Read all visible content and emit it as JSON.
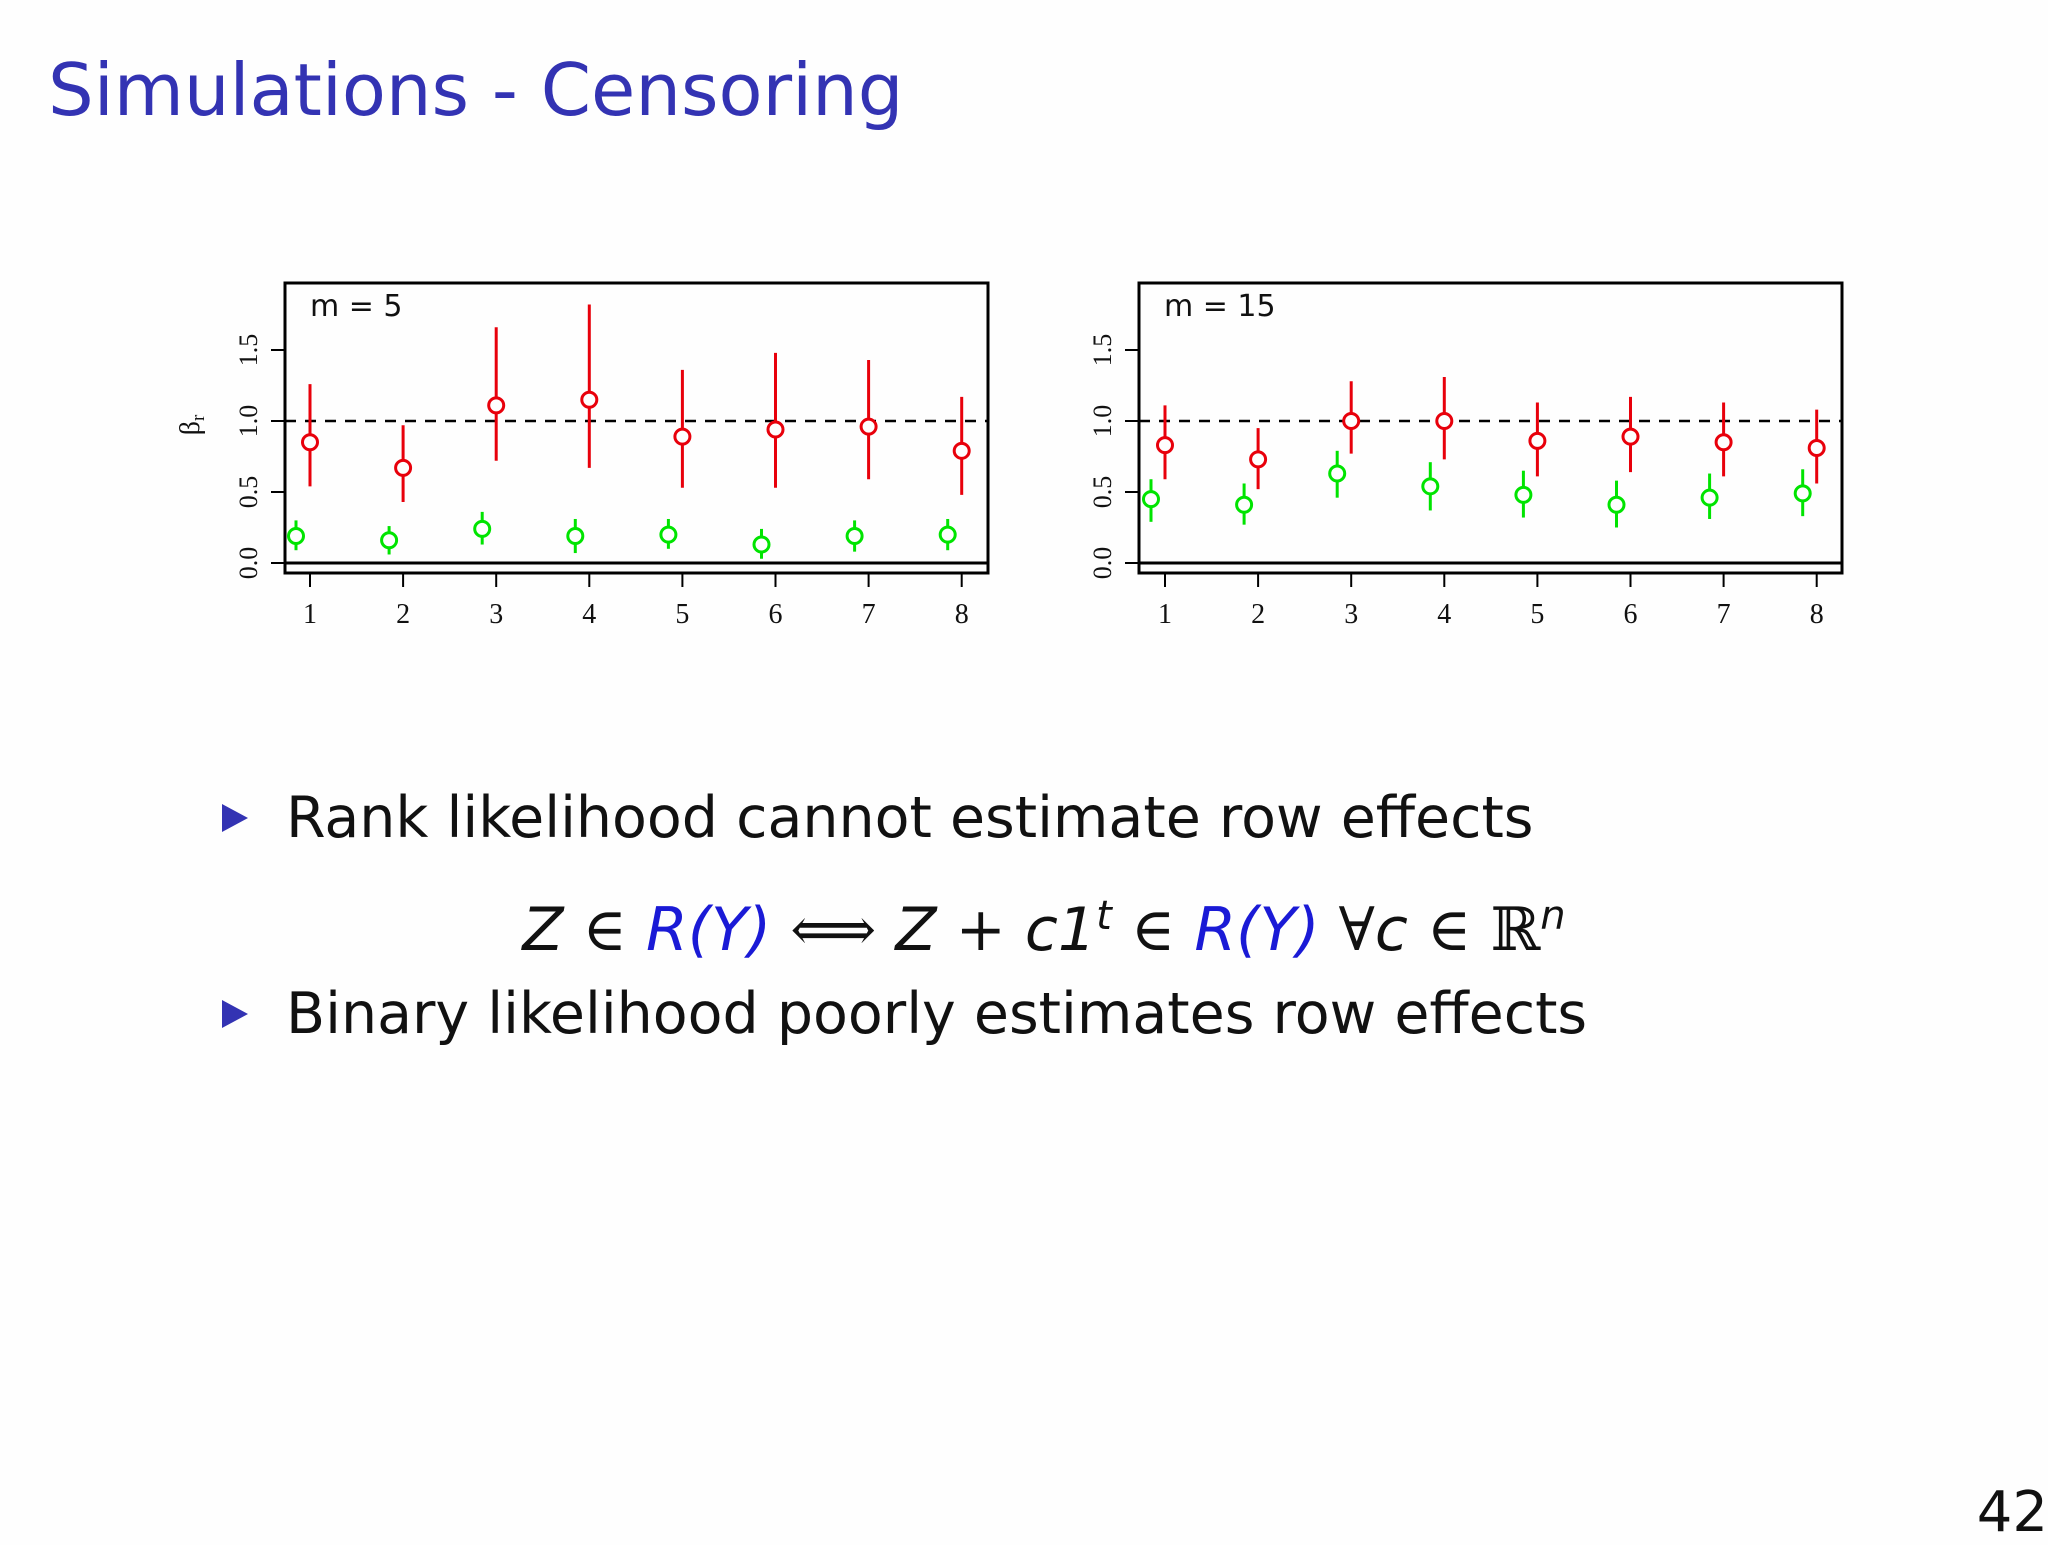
{
  "slide": {
    "title": "Simulations - Censoring",
    "page_number": "42"
  },
  "chart_data": [
    {
      "type": "scatter",
      "panel_label": "m = 5",
      "ylabel": "β_r",
      "x": [
        1,
        2,
        3,
        4,
        5,
        6,
        7,
        8
      ],
      "xticks": [
        "1",
        "2",
        "3",
        "4",
        "5",
        "6",
        "7",
        "8"
      ],
      "yticks": [
        "0.0",
        "0.5",
        "1.0",
        "1.5"
      ],
      "ylim": [
        -0.07,
        1.95
      ],
      "reference_line": 1.0,
      "series": [
        {
          "color": "#e8000b",
          "values": [
            0.85,
            0.67,
            1.11,
            1.15,
            0.89,
            0.94,
            0.96,
            0.79
          ],
          "lower": [
            0.54,
            0.43,
            0.72,
            0.67,
            0.53,
            0.53,
            0.59,
            0.48
          ],
          "upper": [
            1.26,
            0.97,
            1.66,
            1.82,
            1.36,
            1.48,
            1.43,
            1.17
          ]
        },
        {
          "color": "#00e400",
          "values": [
            0.19,
            0.16,
            0.24,
            0.19,
            0.2,
            0.13,
            0.19,
            0.2
          ],
          "lower": [
            0.09,
            0.06,
            0.13,
            0.07,
            0.1,
            0.03,
            0.08,
            0.09
          ],
          "upper": [
            0.3,
            0.26,
            0.36,
            0.31,
            0.31,
            0.24,
            0.3,
            0.31
          ]
        }
      ]
    },
    {
      "type": "scatter",
      "panel_label": "m = 15",
      "ylabel": "",
      "x": [
        1,
        2,
        3,
        4,
        5,
        6,
        7,
        8
      ],
      "xticks": [
        "1",
        "2",
        "3",
        "4",
        "5",
        "6",
        "7",
        "8"
      ],
      "yticks": [
        "0.0",
        "0.5",
        "1.0",
        "1.5"
      ],
      "ylim": [
        -0.07,
        1.95
      ],
      "reference_line": 1.0,
      "series": [
        {
          "color": "#e8000b",
          "values": [
            0.83,
            0.73,
            1.0,
            1.0,
            0.86,
            0.89,
            0.85,
            0.81
          ],
          "lower": [
            0.59,
            0.52,
            0.77,
            0.73,
            0.61,
            0.64,
            0.61,
            0.56
          ],
          "upper": [
            1.11,
            0.95,
            1.28,
            1.31,
            1.13,
            1.17,
            1.13,
            1.08
          ]
        },
        {
          "color": "#00e400",
          "values": [
            0.45,
            0.41,
            0.63,
            0.54,
            0.48,
            0.41,
            0.46,
            0.49
          ],
          "lower": [
            0.29,
            0.27,
            0.46,
            0.37,
            0.32,
            0.25,
            0.31,
            0.33
          ],
          "upper": [
            0.59,
            0.56,
            0.79,
            0.71,
            0.65,
            0.58,
            0.63,
            0.66
          ]
        }
      ]
    }
  ],
  "bullets": [
    {
      "text": "Rank likelihood cannot estimate row effects"
    },
    {
      "text": "Binary likelihood poorly estimates row effects"
    }
  ],
  "formula": {
    "z1": "Z",
    "in1": " ∈ ",
    "r1": "R",
    "y1": "(Y)",
    "iff": "  ⟺  ",
    "z2": "Z",
    "plus": " + ",
    "c1": "c1",
    "t": "t",
    "in2": " ∈ ",
    "r2": "R",
    "y2": "(Y)",
    "forall": " ∀",
    "c": "c",
    "in3": " ∈ ",
    "reals": "ℝ",
    "n": "n"
  }
}
